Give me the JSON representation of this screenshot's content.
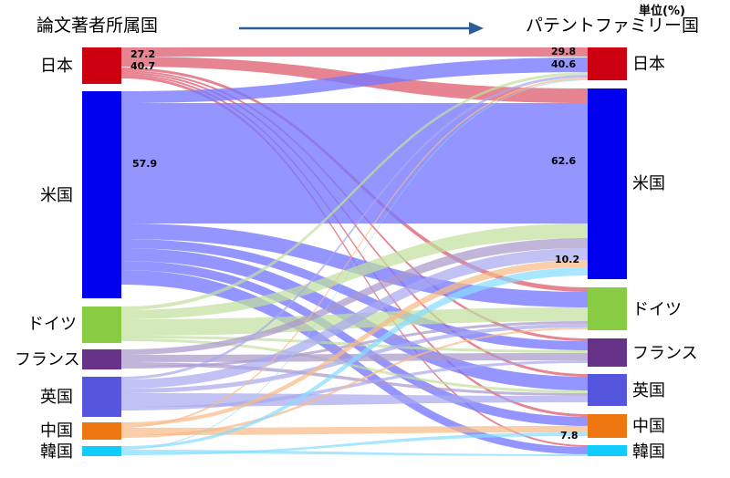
{
  "headers": {
    "left": "論文著者所属国",
    "right": "パテントファミリー国",
    "unit": "単位(%)"
  },
  "nodes": {
    "left": [
      {
        "id": "jp",
        "label": "日本",
        "color": "#cc0011"
      },
      {
        "id": "us",
        "label": "米国",
        "color": "#0000ee"
      },
      {
        "id": "de",
        "label": "ドイツ",
        "color": "#88cc44"
      },
      {
        "id": "fr",
        "label": "フランス",
        "color": "#663388"
      },
      {
        "id": "uk",
        "label": "英国",
        "color": "#5555dd"
      },
      {
        "id": "cn",
        "label": "中国",
        "color": "#ee7711"
      },
      {
        "id": "kr",
        "label": "韓国",
        "color": "#11ccff"
      }
    ],
    "right": [
      {
        "id": "jp",
        "label": "日本",
        "color": "#cc0011"
      },
      {
        "id": "us",
        "label": "米国",
        "color": "#0000ee"
      },
      {
        "id": "de",
        "label": "ドイツ",
        "color": "#88cc44"
      },
      {
        "id": "fr",
        "label": "フランス",
        "color": "#663388"
      },
      {
        "id": "uk",
        "label": "英国",
        "color": "#5555dd"
      },
      {
        "id": "cn",
        "label": "中国",
        "color": "#ee7711"
      },
      {
        "id": "kr",
        "label": "韓国",
        "color": "#11ccff"
      }
    ]
  },
  "value_labels": {
    "left": [
      "27.2",
      "40.7",
      "57.9"
    ],
    "right": [
      "29.8",
      "40.6",
      "62.6",
      "10.2",
      "7.8"
    ]
  },
  "flow_colors": {
    "jp": "#dd5566",
    "us": "#7777ff",
    "de": "#c2e0a0",
    "fr": "#aa99cc",
    "uk": "#a9a9ee",
    "cn": "#f7bb88",
    "kr": "#88ddff"
  }
}
